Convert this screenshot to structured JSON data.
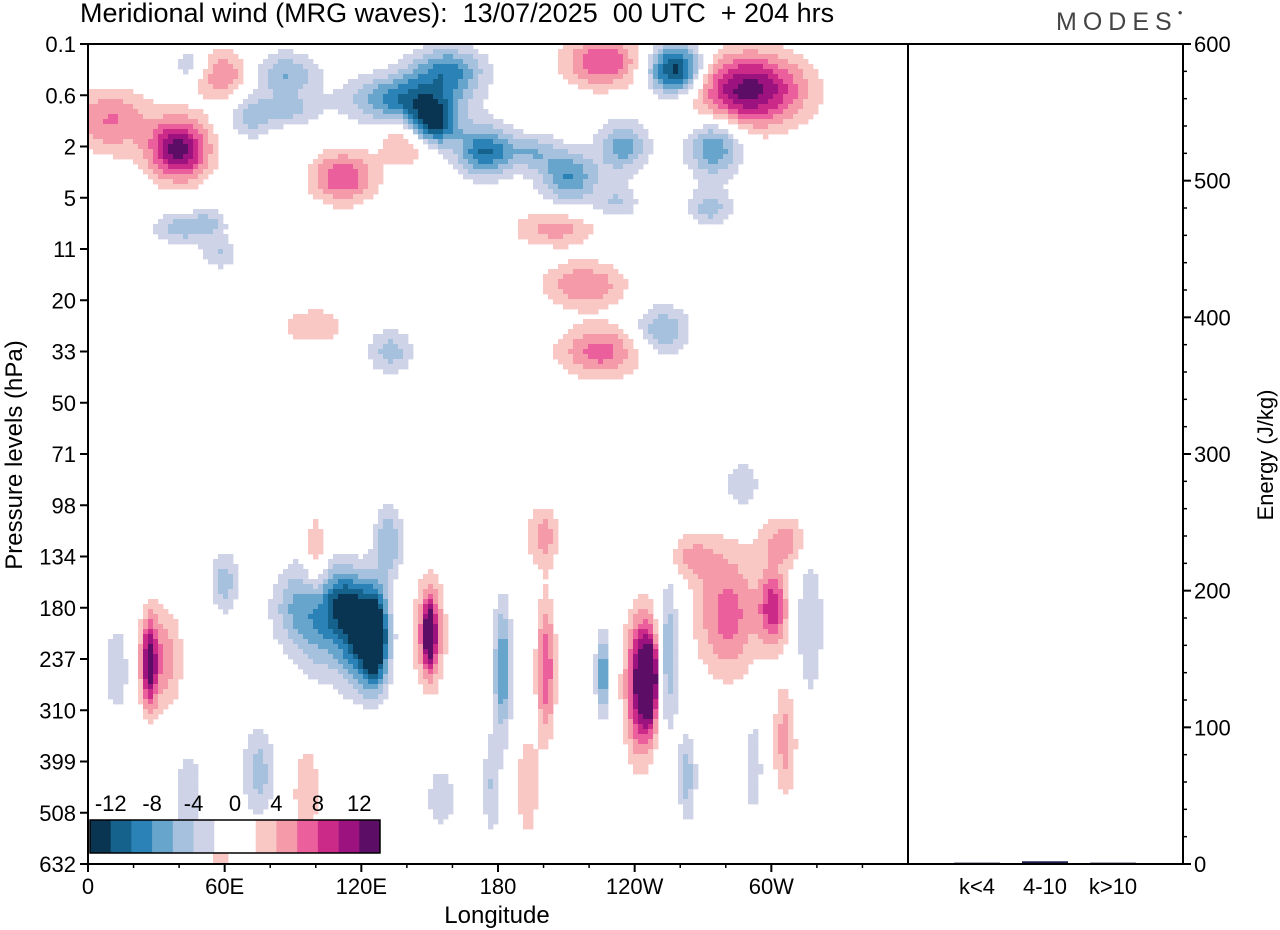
{
  "header": {
    "title": "Meridional wind (MRG waves):  13/07/2025  00 UTC  + 204 hrs",
    "brand": "MODES"
  },
  "chart_data": [
    {
      "type": "heatmap",
      "title": "Meridional wind (MRG waves):  13/07/2025  00 UTC  + 204 hrs",
      "xlabel": "Longitude",
      "ylabel": "Pressure levels (hPa)",
      "x_ticks": [
        "0",
        "60E",
        "120E",
        "180",
        "120W",
        "60W"
      ],
      "x_range": [
        0,
        360
      ],
      "y_ticks": [
        "0.1",
        "0.6",
        "2",
        "5",
        "11",
        "20",
        "33",
        "50",
        "71",
        "98",
        "134",
        "180",
        "237",
        "310",
        "399",
        "508",
        "632"
      ],
      "y_scale": "categorical pressure levels, 0.1 hPa at top, 632 hPa at bottom",
      "colorbar": {
        "labels": [
          "-12",
          "-8",
          "-4",
          "0",
          "4",
          "8",
          "12"
        ],
        "levels": [
          -14,
          -12,
          -10,
          -8,
          -6,
          -4,
          -2,
          0,
          2,
          4,
          6,
          8,
          10,
          12,
          14
        ],
        "colors": [
          "#0a3552",
          "#15628c",
          "#2b82b6",
          "#68a5cc",
          "#a5c1de",
          "#cfd3e7",
          "#ffffff",
          "#ffffff",
          "#f9c8c5",
          "#f59aa9",
          "#ea5f9c",
          "#cc2a89",
          "#9c137f",
          "#5c0e66"
        ],
        "placement": "bottom-left inside plot"
      },
      "features": [
        {
          "lon": 10,
          "level": 1.6,
          "value": -6,
          "sx": 24,
          "sy": 0.55
        },
        {
          "lon": 40,
          "level": 3.6,
          "value": -5,
          "sx": 12,
          "sy": 0.3
        },
        {
          "lon": 53,
          "level": 3.5,
          "value": -4,
          "sx": 8,
          "sy": 0.3
        },
        {
          "lon": 58,
          "level": 4.1,
          "value": -4,
          "sx": 8,
          "sy": 0.3
        },
        {
          "lon": 45,
          "level": 0.4,
          "value": -4,
          "sx": 8,
          "sy": 0.3
        },
        {
          "lon": 72,
          "level": 1.4,
          "value": -5,
          "sx": 10,
          "sy": 0.45
        },
        {
          "lon": 87,
          "level": 0.6,
          "value": -6,
          "sx": 14,
          "sy": 0.45
        },
        {
          "lon": 90,
          "level": 1.3,
          "value": -4,
          "sx": 12,
          "sy": 0.3
        },
        {
          "lon": 140,
          "level": 1.1,
          "value": -10,
          "sx": 24,
          "sy": 0.5
        },
        {
          "lon": 150,
          "level": 1.6,
          "value": -14,
          "sx": 11,
          "sy": 0.45
        },
        {
          "lon": 158,
          "level": 0.5,
          "value": -8,
          "sx": 16,
          "sy": 0.45
        },
        {
          "lon": 174,
          "level": 2.1,
          "value": -10,
          "sx": 12,
          "sy": 0.5
        },
        {
          "lon": 195,
          "level": 2.1,
          "value": -5,
          "sx": 12,
          "sy": 0.35
        },
        {
          "lon": 211,
          "level": 2.6,
          "value": -8,
          "sx": 13,
          "sy": 0.5
        },
        {
          "lon": 235,
          "level": 2.0,
          "value": -7,
          "sx": 11,
          "sy": 0.5
        },
        {
          "lon": 258,
          "level": 0.5,
          "value": -14,
          "sx": 12,
          "sy": 0.5
        },
        {
          "lon": 232,
          "level": 3.1,
          "value": -4,
          "sx": 10,
          "sy": 0.35
        },
        {
          "lon": 275,
          "level": 2.0,
          "value": -8,
          "sx": 12,
          "sy": 0.6
        },
        {
          "lon": 273,
          "level": 3.2,
          "value": -5,
          "sx": 10,
          "sy": 0.35
        },
        {
          "lon": 10,
          "level": 1.55,
          "value": 12,
          "sx": 20,
          "sy": 0.6
        },
        {
          "lon": 40,
          "level": 2.05,
          "value": 13,
          "sx": 13,
          "sy": 0.6
        },
        {
          "lon": 59,
          "level": 0.6,
          "value": 6,
          "sx": 12,
          "sy": 0.5
        },
        {
          "lon": 112,
          "level": 2.6,
          "value": 8,
          "sx": 14,
          "sy": 0.5
        },
        {
          "lon": 142,
          "level": 1.8,
          "value": 8,
          "sx": 12,
          "sy": 0.5
        },
        {
          "lon": 226,
          "level": 0.35,
          "value": 8,
          "sx": 17,
          "sy": 0.5
        },
        {
          "lon": 290,
          "level": 0.9,
          "value": 13,
          "sx": 24,
          "sy": 0.7
        },
        {
          "lon": 205,
          "level": 3.6,
          "value": 5,
          "sx": 18,
          "sy": 0.35
        },
        {
          "lon": 218,
          "level": 4.7,
          "value": 6,
          "sx": 18,
          "sy": 0.45
        },
        {
          "lon": 225,
          "level": 6.0,
          "value": 7,
          "sx": 18,
          "sy": 0.5
        },
        {
          "lon": 99,
          "level": 5.5,
          "value": 4,
          "sx": 14,
          "sy": 0.35
        },
        {
          "lon": 133,
          "level": 6.0,
          "value": -5,
          "sx": 10,
          "sy": 0.45
        },
        {
          "lon": 252,
          "level": 5.6,
          "value": -6,
          "sx": 12,
          "sy": 0.5
        },
        {
          "lon": 100,
          "level": 10.0,
          "value": 5,
          "sx": 5,
          "sy": 0.8
        },
        {
          "lon": 132,
          "level": 9.7,
          "value": -6,
          "sx": 6,
          "sy": 0.7
        },
        {
          "lon": 200,
          "level": 9.6,
          "value": 5,
          "sx": 7,
          "sy": 0.6
        },
        {
          "lon": 60,
          "level": 10.5,
          "value": -5,
          "sx": 6,
          "sy": 0.6
        },
        {
          "lon": 265,
          "level": 10.0,
          "value": 4,
          "sx": 12,
          "sy": 0.45
        },
        {
          "lon": 31,
          "level": 12.0,
          "value": 6,
          "sx": 10,
          "sy": 1.0
        },
        {
          "lon": 27,
          "level": 12.1,
          "value": 10,
          "sx": 3,
          "sy": 0.8
        },
        {
          "lon": 13,
          "level": 12.2,
          "value": -4,
          "sx": 6,
          "sy": 0.9
        },
        {
          "lon": 90,
          "level": 11.0,
          "value": -4,
          "sx": 11,
          "sy": 0.8
        },
        {
          "lon": 103,
          "level": 11.2,
          "value": -7,
          "sx": 13,
          "sy": 1.1
        },
        {
          "lon": 119,
          "level": 11.5,
          "value": -10,
          "sx": 9,
          "sy": 1.0
        },
        {
          "lon": 126,
          "level": 11.6,
          "value": -15,
          "sx": 6,
          "sy": 0.9
        },
        {
          "lon": 112,
          "level": 10.9,
          "value": -6,
          "sx": 8,
          "sy": 0.6
        },
        {
          "lon": 75,
          "level": 14.2,
          "value": -5,
          "sx": 7,
          "sy": 0.9
        },
        {
          "lon": 150,
          "level": 11.5,
          "value": 9,
          "sx": 6,
          "sy": 1.0
        },
        {
          "lon": 150,
          "level": 11.5,
          "value": 13,
          "sx": 2.2,
          "sy": 0.5
        },
        {
          "lon": 182,
          "level": 12.2,
          "value": -8,
          "sx": 4,
          "sy": 1.3
        },
        {
          "lon": 201,
          "level": 12.2,
          "value": 8,
          "sx": 4,
          "sy": 1.3
        },
        {
          "lon": 193,
          "level": 14.5,
          "value": 4,
          "sx": 5,
          "sy": 1.0
        },
        {
          "lon": 177,
          "level": 14.5,
          "value": -4,
          "sx": 4,
          "sy": 1.0
        },
        {
          "lon": 242,
          "level": 12.6,
          "value": 5,
          "sx": 8,
          "sy": 1.5
        },
        {
          "lon": 243,
          "level": 12.4,
          "value": 10,
          "sx": 5,
          "sy": 1.1
        },
        {
          "lon": 247,
          "level": 12.4,
          "value": 14,
          "sx": 3,
          "sy": 0.8
        },
        {
          "lon": 226,
          "level": 12.3,
          "value": -8,
          "sx": 3,
          "sy": 0.8
        },
        {
          "lon": 255,
          "level": 11.9,
          "value": -6,
          "sx": 4,
          "sy": 1.5
        },
        {
          "lon": 263,
          "level": 14.3,
          "value": -5,
          "sx": 4,
          "sy": 0.9
        },
        {
          "lon": 281,
          "level": 11.1,
          "value": 7,
          "sx": 14,
          "sy": 1.2
        },
        {
          "lon": 301,
          "level": 11.0,
          "value": 9,
          "sx": 6,
          "sy": 0.7
        },
        {
          "lon": 306,
          "level": 13.6,
          "value": 5,
          "sx": 5,
          "sy": 1.1
        },
        {
          "lon": 292,
          "level": 14.1,
          "value": -4,
          "sx": 4,
          "sy": 0.9
        },
        {
          "lon": 306,
          "level": 9.7,
          "value": 5,
          "sx": 11,
          "sy": 0.5
        },
        {
          "lon": 317,
          "level": 11.3,
          "value": -4,
          "sx": 6,
          "sy": 1.5
        },
        {
          "lon": 287,
          "level": 8.6,
          "value": -4,
          "sx": 8,
          "sy": 0.45
        },
        {
          "lon": 44,
          "level": 14.6,
          "value": -4,
          "sx": 6,
          "sy": 0.8
        },
        {
          "lon": 59,
          "level": 15.8,
          "value": 4,
          "sx": 4,
          "sy": 0.6
        },
        {
          "lon": 96,
          "level": 14.6,
          "value": 4,
          "sx": 6,
          "sy": 0.9
        },
        {
          "lon": 155,
          "level": 14.7,
          "value": -4,
          "sx": 6,
          "sy": 0.6
        }
      ]
    },
    {
      "type": "bar",
      "categories": [
        "k<4",
        "4-10",
        "k>10"
      ],
      "values": [
        1,
        2,
        1
      ],
      "ylabel": "Energy (J/kg)",
      "y_ticks": [
        "0",
        "100",
        "200",
        "300",
        "400",
        "500",
        "600"
      ],
      "ylim": [
        0,
        600
      ],
      "bar_color": "#1a1f4d"
    }
  ]
}
